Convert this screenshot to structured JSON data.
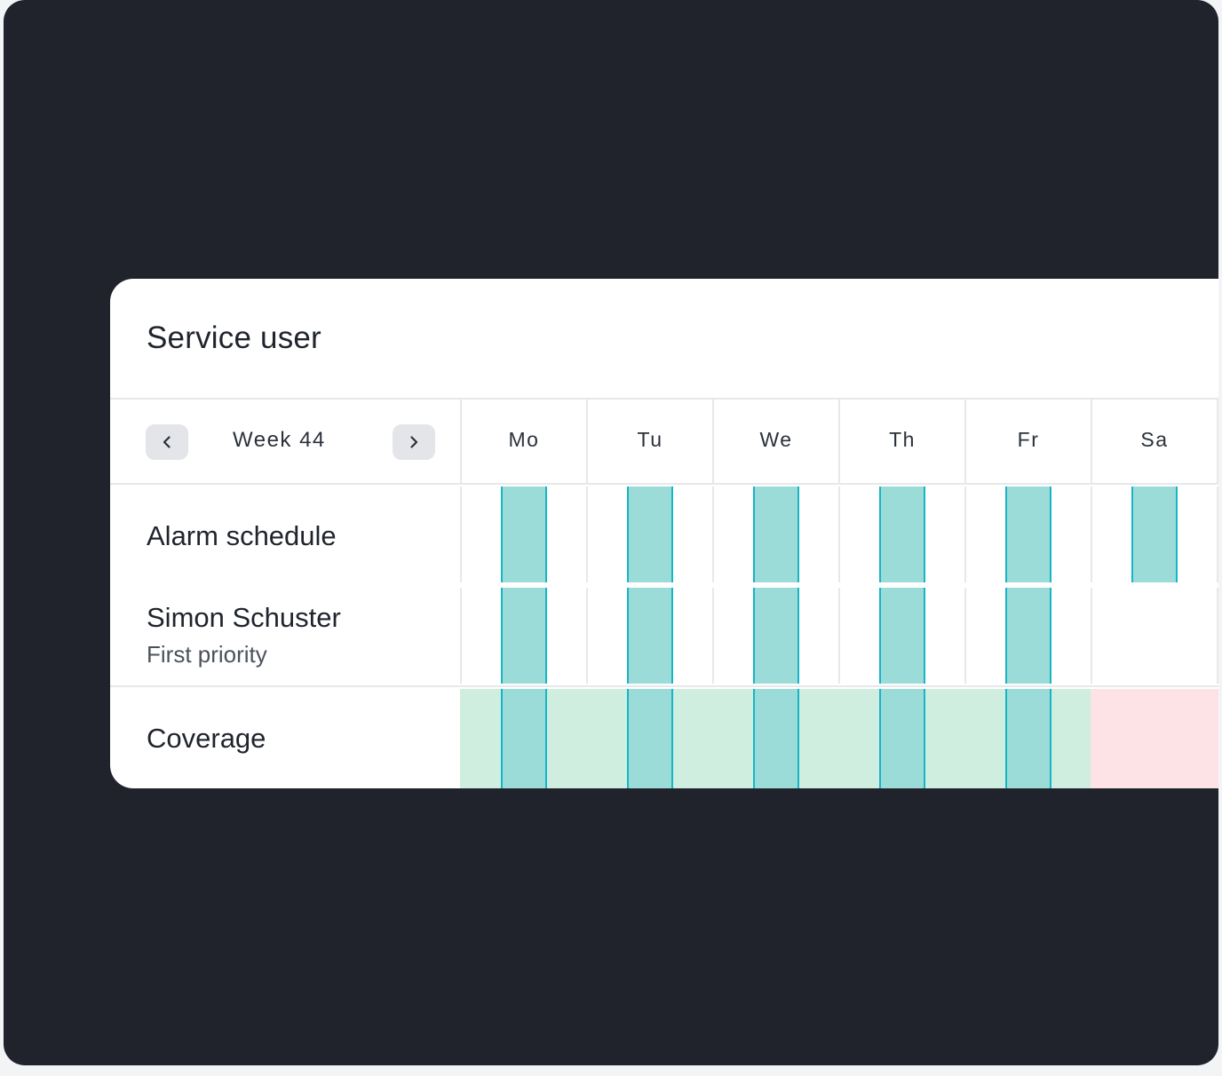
{
  "card": {
    "title": "Service user"
  },
  "week": {
    "label": "Week 44",
    "prev_icon": "chevron-left-icon",
    "next_icon": "chevron-right-icon"
  },
  "days": [
    "Mo",
    "Tu",
    "We",
    "Th",
    "Fr",
    "Sa"
  ],
  "rows": {
    "alarm_schedule": {
      "label": "Alarm schedule",
      "active_days": [
        true,
        true,
        true,
        true,
        true,
        true
      ]
    },
    "person": {
      "name": "Simon Schuster",
      "priority": "First priority",
      "active_days": [
        true,
        true,
        true,
        true,
        true,
        false
      ]
    },
    "coverage": {
      "label": "Coverage",
      "covered_days": [
        true,
        true,
        true,
        true,
        true,
        false
      ]
    }
  },
  "colors": {
    "frame_bg": "#20232c",
    "alarm_fill": "#9bdcd9",
    "alarm_border": "#16b5c7",
    "covered": "#cfeee0",
    "uncovered": "#fde2e6"
  }
}
